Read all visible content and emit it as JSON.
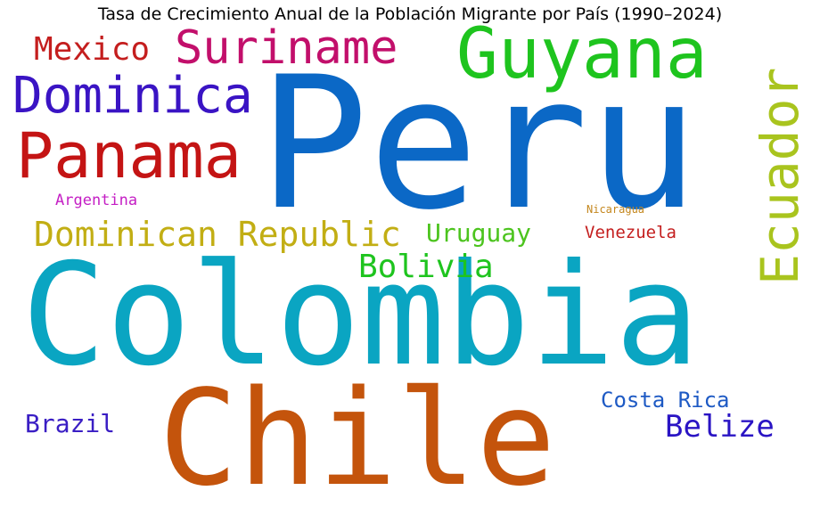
{
  "chart_data": {
    "type": "wordcloud",
    "title": "Tasa de Crecimiento Anual de la Población Migrante por País (1990–2024)",
    "words": [
      {
        "text": "Peru",
        "color": "#0b68c6"
      },
      {
        "text": "Colombia",
        "color": "#0aa5c2"
      },
      {
        "text": "Chile",
        "color": "#c4540c"
      },
      {
        "text": "Guyana",
        "color": "#1ec41e"
      },
      {
        "text": "Suriname",
        "color": "#c20f6b"
      },
      {
        "text": "Dominica",
        "color": "#3a14c4"
      },
      {
        "text": "Panama",
        "color": "#c41414"
      },
      {
        "text": "Ecuador",
        "color": "#a9c41e"
      },
      {
        "text": "Dominican Republic",
        "color": "#c2ae14"
      },
      {
        "text": "Mexico",
        "color": "#c41e1e"
      },
      {
        "text": "Bolivia",
        "color": "#1ec41e"
      },
      {
        "text": "Uruguay",
        "color": "#4cc41e"
      },
      {
        "text": "Belize",
        "color": "#2a14c4"
      },
      {
        "text": "Brazil",
        "color": "#3a1ec4"
      },
      {
        "text": "Costa Rica",
        "color": "#1e5ac4"
      },
      {
        "text": "Venezuela",
        "color": "#c41e1e"
      },
      {
        "text": "Argentina",
        "color": "#c41ec4"
      },
      {
        "text": "Nicaragua",
        "color": "#c4871e"
      }
    ]
  }
}
